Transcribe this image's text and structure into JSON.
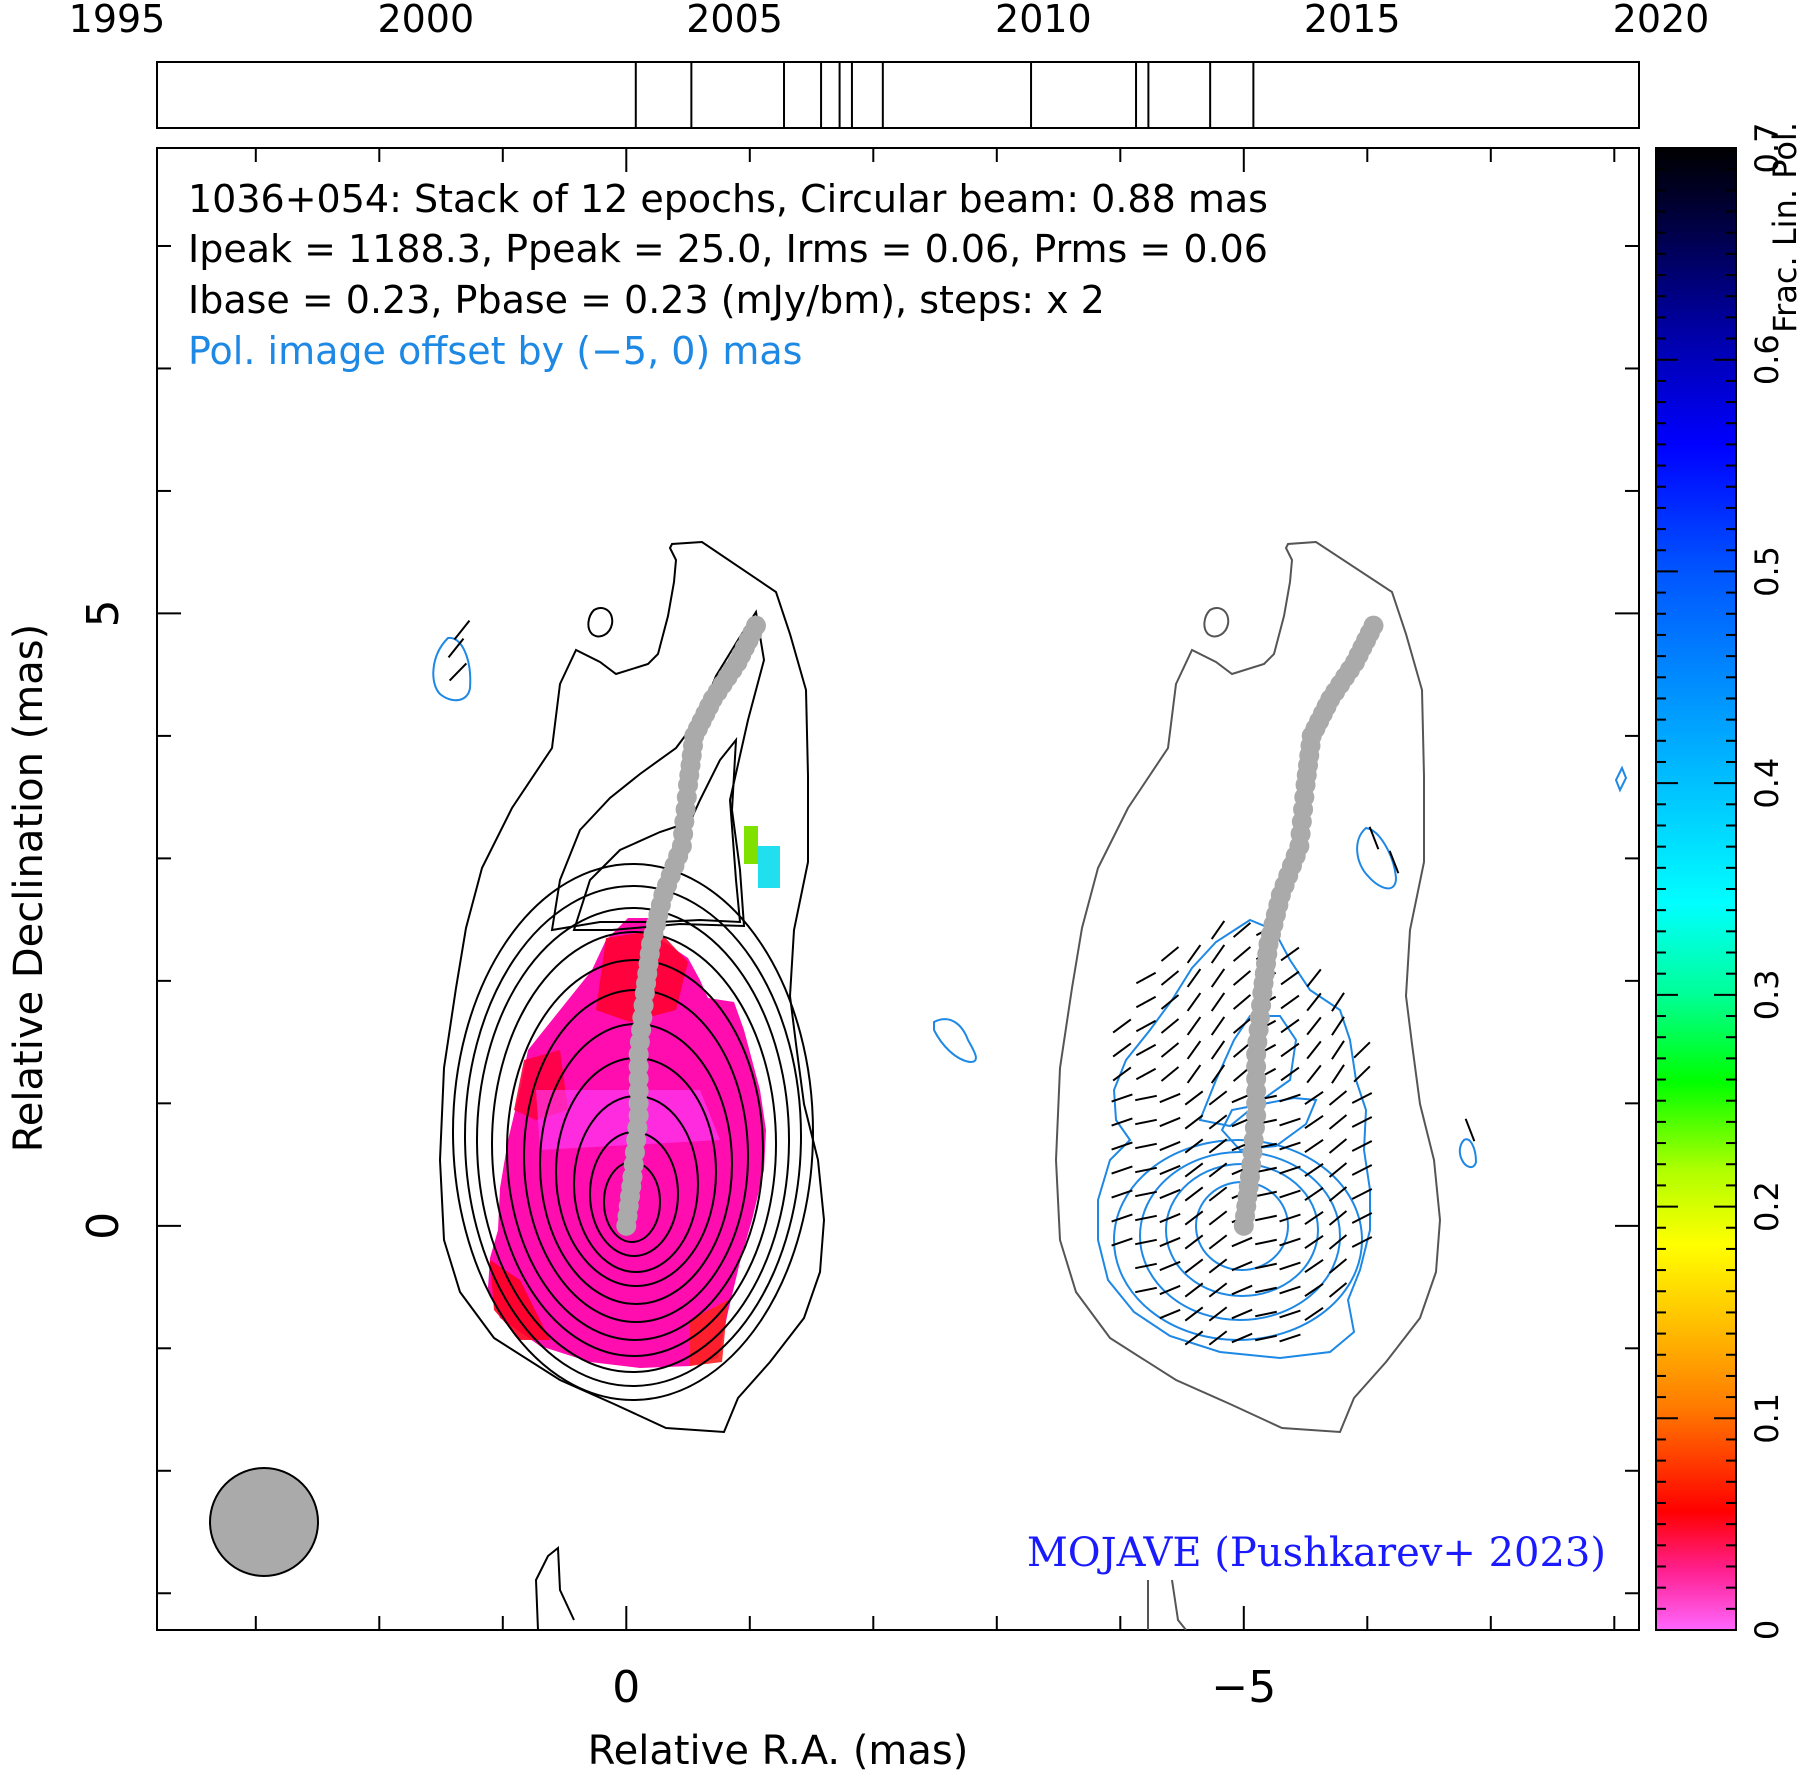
{
  "chart_data": {
    "type": "contour",
    "source": "1036+054",
    "header_lines": [
      "1036+054: Stack of 12 epochs, Circular beam: 0.88 mas",
      "Ipeak = 1188.3, Ppeak = 25.0, Irms = 0.06, Prms = 0.06",
      "Ibase = 0.23, Pbase = 0.23 (mJy/bm), steps: x 2"
    ],
    "offset_note": "Pol. image offset by (−5, 0) mas",
    "credit": "MOJAVE (Pushkarev+ 2023)",
    "xlabel": "Relative R.A. (mas)",
    "ylabel": "Relative Declination (mas)",
    "xlim": [
      3.8,
      -8.2
    ],
    "ylim": [
      -3.3,
      8.8
    ],
    "x_ticks": [
      {
        "value": 0,
        "label": "0"
      },
      {
        "value": -5,
        "label": "−5"
      }
    ],
    "y_ticks": [
      {
        "value": 0,
        "label": "0"
      },
      {
        "value": 5,
        "label": "5"
      }
    ],
    "timeline": {
      "years": [
        "1995",
        "2000",
        "2005",
        "2010",
        "2015",
        "2020"
      ],
      "range": [
        1995,
        2020
      ],
      "epochs": [
        2003.4,
        2004.3,
        2005.8,
        2006.4,
        2006.7,
        2006.9,
        2007.4,
        2009.8,
        2011.5,
        2011.7,
        2012.7,
        2013.4
      ]
    },
    "colorbar": {
      "label": "Frac. Lin. Pol.",
      "ticks": [
        "0",
        "0.1",
        "0.2",
        "0.3",
        "0.4",
        "0.5",
        "0.6",
        "0.7"
      ],
      "range": [
        0,
        0.7
      ]
    },
    "beam": {
      "diameter_mas": 0.88
    },
    "ridge_line": [
      [
        0.0,
        0.0
      ],
      [
        -0.05,
        0.4
      ],
      [
        -0.1,
        0.9
      ],
      [
        -0.1,
        1.4
      ],
      [
        -0.15,
        1.9
      ],
      [
        -0.2,
        2.3
      ],
      [
        -0.3,
        2.7
      ],
      [
        -0.45,
        3.1
      ],
      [
        -0.5,
        3.6
      ],
      [
        -0.55,
        4.0
      ],
      [
        -0.7,
        4.3
      ],
      [
        -0.9,
        4.6
      ],
      [
        -1.05,
        4.9
      ]
    ],
    "contour_levels": 12,
    "colors": {
      "stokes_i": "#000000",
      "pol_contours": "#1e88e5",
      "ridge": "#aaaaaa",
      "fractional_pol_low": "#ff1493",
      "credit": "#1a1aff"
    }
  }
}
